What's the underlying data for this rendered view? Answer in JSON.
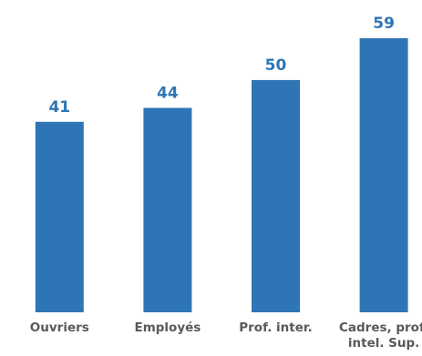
{
  "chart_data": {
    "type": "bar",
    "categories": [
      [
        "Ouvriers"
      ],
      [
        "Employés"
      ],
      [
        "Prof. inter."
      ],
      [
        "Cadres, prof.",
        "intel. Sup."
      ]
    ],
    "values": [
      41,
      44,
      50,
      59
    ],
    "ylim": [
      0,
      59
    ],
    "grid": false,
    "bar_color": "#2E75B6",
    "label_color": "#2E75B6",
    "axis_text_color": "#595959"
  }
}
